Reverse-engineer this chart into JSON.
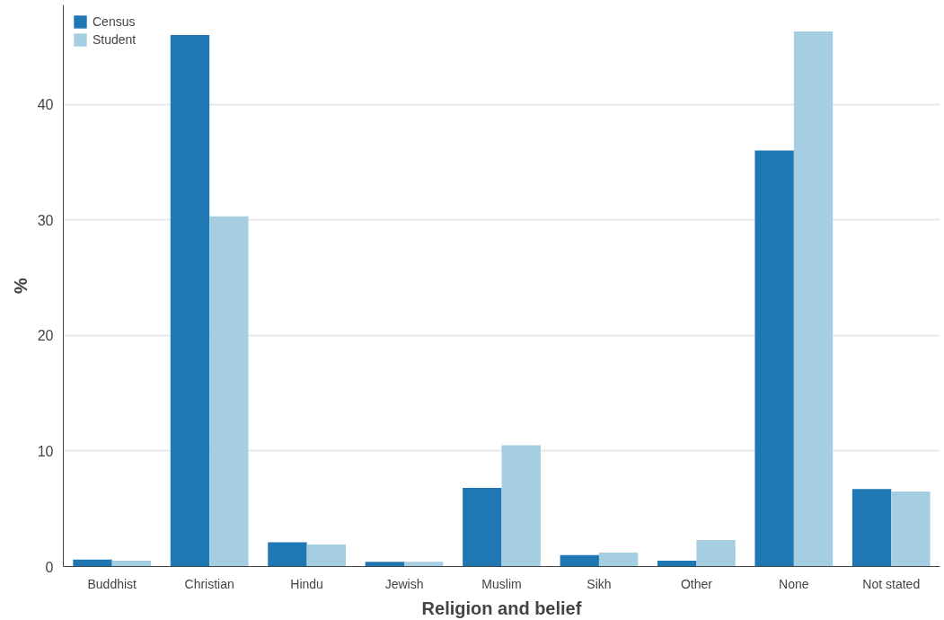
{
  "chart_data": {
    "type": "bar",
    "xlabel": "Religion and belief",
    "ylabel": "%",
    "categories": [
      "Buddhist",
      "Christian",
      "Hindu",
      "Jewish",
      "Muslim",
      "Sikh",
      "Other",
      "None",
      "Not stated"
    ],
    "series": [
      {
        "name": "Census",
        "color": "#1f78b4",
        "values": [
          0.6,
          46.0,
          2.1,
          0.4,
          6.8,
          1.0,
          0.5,
          36.0,
          6.7
        ]
      },
      {
        "name": "Student",
        "color": "#a6cee3",
        "values": [
          0.5,
          30.3,
          1.9,
          0.4,
          10.5,
          1.2,
          2.3,
          46.3,
          6.5
        ]
      }
    ],
    "ylim": [
      0,
      48.6
    ],
    "yticks": [
      0,
      10,
      20,
      30,
      40
    ],
    "grid": "y",
    "legend": "top left"
  }
}
